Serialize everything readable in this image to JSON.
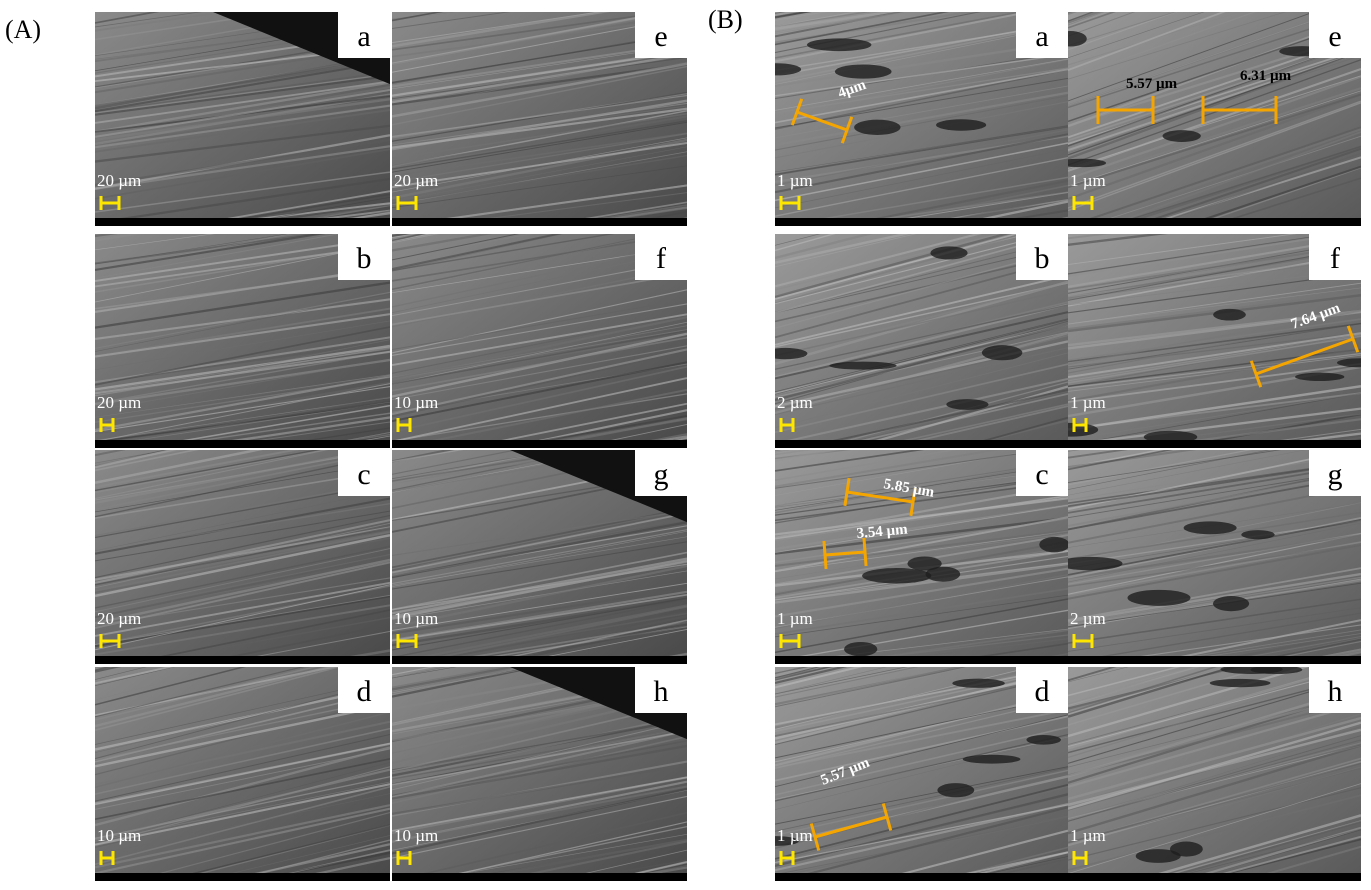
{
  "panels": [
    {
      "label": "(A)",
      "tiles": [
        {
          "letter": "a",
          "scale": "20 µm"
        },
        {
          "letter": "b",
          "scale": "20 µm"
        },
        {
          "letter": "c",
          "scale": "20 µm"
        },
        {
          "letter": "d",
          "scale": "10 µm"
        },
        {
          "letter": "e",
          "scale": "20 µm"
        },
        {
          "letter": "f",
          "scale": "10 µm"
        },
        {
          "letter": "g",
          "scale": "10 µm"
        },
        {
          "letter": "h",
          "scale": "10 µm"
        }
      ]
    },
    {
      "label": "(B)",
      "tiles": [
        {
          "letter": "a",
          "scale": "1 µm",
          "measurements": [
            "4µm"
          ]
        },
        {
          "letter": "b",
          "scale": "2 µm"
        },
        {
          "letter": "c",
          "scale": "1 µm",
          "measurements": [
            "5.85 µm",
            "3.54 µm"
          ]
        },
        {
          "letter": "d",
          "scale": "1 µm",
          "measurements": [
            "5.57 µm"
          ]
        },
        {
          "letter": "e",
          "scale": "1 µm",
          "measurements": [
            "5.57 µm",
            "6.31 µm"
          ]
        },
        {
          "letter": "f",
          "scale": "1 µm",
          "measurements": [
            "7.64 µm"
          ]
        },
        {
          "letter": "g",
          "scale": "2 µm"
        },
        {
          "letter": "h",
          "scale": "1 µm"
        }
      ]
    }
  ]
}
